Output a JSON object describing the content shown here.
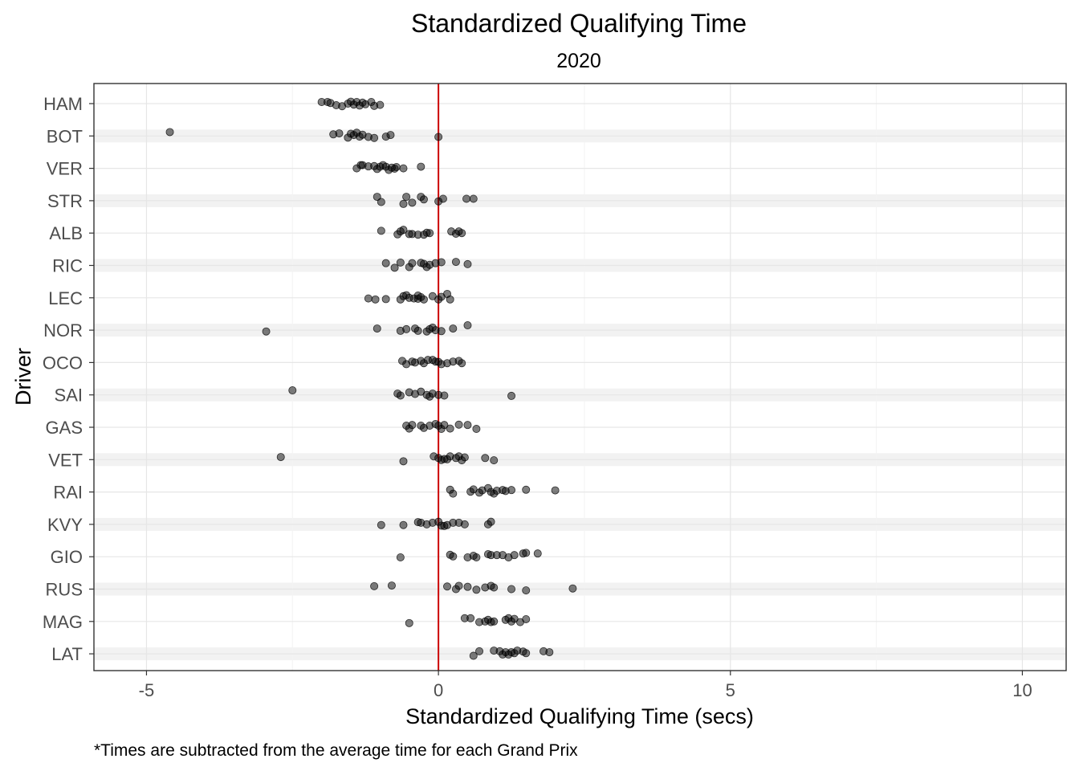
{
  "chart_data": {
    "type": "scatter",
    "title": "Standardized Qualifying Time",
    "subtitle": "2020",
    "xlabel": "Standardized Qualifying Time (secs)",
    "ylabel": "Driver",
    "caption": "*Times are subtracted from the average time for each Grand Prix",
    "xlim": [
      -5.9,
      10.75
    ],
    "x_ticks": [
      -5,
      0,
      5,
      10
    ],
    "x_tick_labels": [
      "-5",
      "0",
      "5",
      "10"
    ],
    "grid": true,
    "alternating_row_bands": true,
    "reference_line": {
      "x": 0,
      "color": "#cc0000"
    },
    "point_color": "#000000",
    "point_opacity": 0.5,
    "categories": [
      "HAM",
      "BOT",
      "VER",
      "STR",
      "ALB",
      "RIC",
      "LEC",
      "NOR",
      "OCO",
      "SAI",
      "GAS",
      "VET",
      "RAI",
      "KVY",
      "GIO",
      "RUS",
      "MAG",
      "LAT"
    ],
    "series": [
      {
        "driver": "HAM",
        "points": [
          [
            -2.0,
            0.05
          ],
          [
            -1.9,
            0.05
          ],
          [
            -1.85,
            0.02
          ],
          [
            -1.75,
            -0.05
          ],
          [
            -1.65,
            -0.08
          ],
          [
            -1.55,
            0.0
          ],
          [
            -1.5,
            0.06
          ],
          [
            -1.45,
            -0.03
          ],
          [
            -1.4,
            0.05
          ],
          [
            -1.35,
            -0.06
          ],
          [
            -1.3,
            0.03
          ],
          [
            -1.25,
            -0.02
          ],
          [
            -1.15,
            0.05
          ],
          [
            -1.1,
            -0.07
          ],
          [
            -1.0,
            -0.04
          ]
        ]
      },
      {
        "driver": "BOT",
        "points": [
          [
            -4.6,
            0.12
          ],
          [
            -1.8,
            0.05
          ],
          [
            -1.7,
            0.08
          ],
          [
            -1.55,
            -0.05
          ],
          [
            -1.5,
            0.07
          ],
          [
            -1.45,
            0.03
          ],
          [
            -1.4,
            0.1
          ],
          [
            -1.35,
            -0.02
          ],
          [
            -1.3,
            0.04
          ],
          [
            -1.2,
            -0.03
          ],
          [
            -1.1,
            -0.06
          ],
          [
            -0.9,
            -0.02
          ],
          [
            -0.82,
            0.03
          ],
          [
            0.0,
            -0.03
          ]
        ]
      },
      {
        "driver": "VER",
        "points": [
          [
            -1.4,
            0.0
          ],
          [
            -1.33,
            0.1
          ],
          [
            -1.3,
            0.1
          ],
          [
            -1.2,
            0.06
          ],
          [
            -1.1,
            0.07
          ],
          [
            -1.05,
            -0.02
          ],
          [
            -1.0,
            0.05
          ],
          [
            -0.95,
            0.1
          ],
          [
            -0.9,
            0.05
          ],
          [
            -0.85,
            -0.05
          ],
          [
            -0.8,
            0.02
          ],
          [
            -0.75,
            -0.01
          ],
          [
            -0.72,
            0.04
          ],
          [
            -0.6,
            0.0
          ],
          [
            -0.3,
            0.05
          ]
        ]
      },
      {
        "driver": "STR",
        "points": [
          [
            -1.05,
            0.12
          ],
          [
            -0.98,
            -0.04
          ],
          [
            -0.6,
            -0.1
          ],
          [
            -0.55,
            0.12
          ],
          [
            -0.45,
            -0.06
          ],
          [
            -0.3,
            0.12
          ],
          [
            -0.25,
            0.04
          ],
          [
            0.0,
            -0.02
          ],
          [
            0.08,
            0.06
          ],
          [
            0.48,
            0.06
          ],
          [
            0.6,
            0.06
          ]
        ]
      },
      {
        "driver": "ALB",
        "points": [
          [
            -0.98,
            0.07
          ],
          [
            -0.7,
            -0.04
          ],
          [
            -0.65,
            0.05
          ],
          [
            -0.6,
            0.1
          ],
          [
            -0.5,
            -0.03
          ],
          [
            -0.45,
            -0.03
          ],
          [
            -0.35,
            -0.05
          ],
          [
            -0.25,
            -0.05
          ],
          [
            -0.2,
            0.01
          ],
          [
            -0.15,
            0.0
          ],
          [
            0.22,
            0.05
          ],
          [
            0.3,
            -0.02
          ],
          [
            0.35,
            0.05
          ],
          [
            0.4,
            0.0
          ]
        ]
      },
      {
        "driver": "RIC",
        "points": [
          [
            -0.9,
            0.07
          ],
          [
            -0.75,
            -0.07
          ],
          [
            -0.65,
            0.09
          ],
          [
            -0.5,
            -0.05
          ],
          [
            -0.45,
            0.07
          ],
          [
            -0.3,
            0.08
          ],
          [
            -0.25,
            0.05
          ],
          [
            -0.2,
            -0.05
          ],
          [
            -0.15,
            0.02
          ],
          [
            -0.05,
            0.07
          ],
          [
            0.05,
            0.1
          ],
          [
            0.3,
            0.11
          ],
          [
            0.5,
            0.04
          ]
        ]
      },
      {
        "driver": "LEC",
        "points": [
          [
            -1.2,
            -0.02
          ],
          [
            -1.08,
            -0.05
          ],
          [
            -0.9,
            -0.04
          ],
          [
            -0.65,
            -0.05
          ],
          [
            -0.6,
            0.05
          ],
          [
            -0.55,
            0.08
          ],
          [
            -0.5,
            0.0
          ],
          [
            -0.42,
            -0.02
          ],
          [
            -0.35,
            0.07
          ],
          [
            -0.3,
            0.02
          ],
          [
            -0.25,
            -0.05
          ],
          [
            -0.35,
            -0.03
          ],
          [
            -0.1,
            0.05
          ],
          [
            0.0,
            -0.05
          ],
          [
            0.05,
            0.03
          ],
          [
            0.15,
            0.12
          ],
          [
            0.2,
            -0.05
          ]
        ]
      },
      {
        "driver": "NOR",
        "points": [
          [
            -2.95,
            -0.04
          ],
          [
            -1.05,
            0.05
          ],
          [
            -0.65,
            -0.02
          ],
          [
            -0.55,
            0.03
          ],
          [
            -0.4,
            0.05
          ],
          [
            -0.35,
            -0.02
          ],
          [
            -0.2,
            -0.04
          ],
          [
            -0.15,
            0.03
          ],
          [
            -0.1,
            0.08
          ],
          [
            -0.05,
            0.0
          ],
          [
            0.05,
            -0.03
          ],
          [
            0.25,
            0.05
          ],
          [
            0.5,
            0.15
          ]
        ]
      },
      {
        "driver": "OCO",
        "points": [
          [
            -0.62,
            0.05
          ],
          [
            -0.55,
            -0.05
          ],
          [
            -0.45,
            0.03
          ],
          [
            -0.4,
            0.0
          ],
          [
            -0.3,
            0.05
          ],
          [
            -0.25,
            -0.02
          ],
          [
            -0.18,
            0.08
          ],
          [
            -0.1,
            0.08
          ],
          [
            -0.05,
            0.03
          ],
          [
            0.0,
            0.02
          ],
          [
            0.05,
            -0.05
          ],
          [
            0.15,
            -0.02
          ],
          [
            0.25,
            0.03
          ],
          [
            0.35,
            0.05
          ],
          [
            0.4,
            -0.02
          ]
        ]
      },
      {
        "driver": "SAI",
        "points": [
          [
            -2.5,
            0.14
          ],
          [
            -0.7,
            0.04
          ],
          [
            -0.65,
            -0.02
          ],
          [
            -0.5,
            0.08
          ],
          [
            -0.4,
            0.03
          ],
          [
            -0.3,
            0.1
          ],
          [
            -0.2,
            0.0
          ],
          [
            -0.15,
            -0.05
          ],
          [
            -0.1,
            0.04
          ],
          [
            0.0,
            0.0
          ],
          [
            0.1,
            -0.02
          ],
          [
            1.25,
            -0.03
          ]
        ]
      },
      {
        "driver": "GAS",
        "points": [
          [
            -0.55,
            0.05
          ],
          [
            -0.5,
            -0.04
          ],
          [
            -0.45,
            0.07
          ],
          [
            -0.3,
            0.05
          ],
          [
            -0.25,
            -0.02
          ],
          [
            -0.15,
            0.05
          ],
          [
            -0.05,
            0.1
          ],
          [
            0.0,
            0.05
          ],
          [
            0.05,
            -0.05
          ],
          [
            0.1,
            0.07
          ],
          [
            0.2,
            -0.04
          ],
          [
            0.35,
            0.08
          ],
          [
            0.5,
            0.07
          ],
          [
            0.65,
            -0.05
          ]
        ]
      },
      {
        "driver": "VET",
        "points": [
          [
            -2.7,
            0.08
          ],
          [
            -0.6,
            -0.05
          ],
          [
            -0.08,
            0.1
          ],
          [
            0.0,
            0.05
          ],
          [
            0.05,
            -0.01
          ],
          [
            0.1,
            0.02
          ],
          [
            0.15,
            0.01
          ],
          [
            0.2,
            0.1
          ],
          [
            0.3,
            0.05
          ],
          [
            0.35,
            0.1
          ],
          [
            0.4,
            -0.02
          ],
          [
            0.45,
            0.07
          ],
          [
            0.8,
            0.05
          ],
          [
            0.95,
            -0.02
          ]
        ]
      },
      {
        "driver": "RAI",
        "points": [
          [
            0.2,
            0.07
          ],
          [
            0.25,
            -0.05
          ],
          [
            0.55,
            0.01
          ],
          [
            0.6,
            0.08
          ],
          [
            0.7,
            -0.02
          ],
          [
            0.75,
            0.05
          ],
          [
            0.85,
            0.12
          ],
          [
            0.9,
            0.0
          ],
          [
            0.95,
            -0.05
          ],
          [
            1.0,
            0.04
          ],
          [
            1.1,
            0.06
          ],
          [
            1.15,
            0.03
          ],
          [
            1.25,
            0.06
          ],
          [
            1.5,
            0.07
          ],
          [
            2.0,
            0.05
          ]
        ]
      },
      {
        "driver": "KVY",
        "points": [
          [
            -0.98,
            -0.02
          ],
          [
            -0.6,
            -0.02
          ],
          [
            -0.35,
            0.07
          ],
          [
            -0.3,
            0.05
          ],
          [
            -0.2,
            0.0
          ],
          [
            -0.1,
            0.05
          ],
          [
            0.0,
            0.08
          ],
          [
            0.05,
            -0.04
          ],
          [
            0.1,
            -0.05
          ],
          [
            0.15,
            -0.02
          ],
          [
            0.25,
            0.05
          ],
          [
            0.35,
            0.05
          ],
          [
            0.45,
            0.0
          ],
          [
            0.85,
            0.0
          ],
          [
            0.9,
            0.08
          ]
        ]
      },
      {
        "driver": "GIO",
        "points": [
          [
            -0.65,
            -0.02
          ],
          [
            0.2,
            0.06
          ],
          [
            0.25,
            0.01
          ],
          [
            0.5,
            -0.02
          ],
          [
            0.6,
            0.03
          ],
          [
            0.65,
            -0.02
          ],
          [
            0.85,
            0.08
          ],
          [
            0.9,
            0.05
          ],
          [
            1.0,
            0.05
          ],
          [
            1.1,
            0.05
          ],
          [
            1.2,
            -0.02
          ],
          [
            1.3,
            0.05
          ],
          [
            1.45,
            0.1
          ],
          [
            1.5,
            0.12
          ],
          [
            1.7,
            0.1
          ]
        ]
      },
      {
        "driver": "RUS",
        "points": [
          [
            -1.1,
            0.09
          ],
          [
            -0.8,
            0.11
          ],
          [
            0.15,
            0.08
          ],
          [
            0.3,
            0.0
          ],
          [
            0.35,
            0.1
          ],
          [
            0.5,
            0.07
          ],
          [
            0.65,
            -0.02
          ],
          [
            0.8,
            0.05
          ],
          [
            0.9,
            0.1
          ],
          [
            0.95,
            0.05
          ],
          [
            1.25,
            0.0
          ],
          [
            1.5,
            -0.04
          ],
          [
            2.3,
            0.02
          ]
        ]
      },
      {
        "driver": "MAG",
        "points": [
          [
            -0.5,
            -0.05
          ],
          [
            0.45,
            0.1
          ],
          [
            0.55,
            0.1
          ],
          [
            0.7,
            -0.02
          ],
          [
            0.8,
            0.0
          ],
          [
            0.85,
            0.05
          ],
          [
            0.9,
            -0.02
          ],
          [
            0.95,
            0.0
          ],
          [
            1.15,
            0.05
          ],
          [
            1.2,
            0.1
          ],
          [
            1.25,
            0.0
          ],
          [
            1.3,
            0.08
          ],
          [
            1.4,
            -0.02
          ],
          [
            1.5,
            0.07
          ]
        ]
      },
      {
        "driver": "LAT",
        "points": [
          [
            0.6,
            -0.06
          ],
          [
            0.7,
            0.08
          ],
          [
            0.95,
            0.1
          ],
          [
            1.05,
            0.08
          ],
          [
            1.1,
            -0.02
          ],
          [
            1.15,
            0.05
          ],
          [
            1.2,
            -0.02
          ],
          [
            1.25,
            0.05
          ],
          [
            1.3,
            0.02
          ],
          [
            1.35,
            0.1
          ],
          [
            1.45,
            0.07
          ],
          [
            1.5,
            0.02
          ],
          [
            1.8,
            0.08
          ],
          [
            1.9,
            0.05
          ]
        ]
      }
    ]
  }
}
